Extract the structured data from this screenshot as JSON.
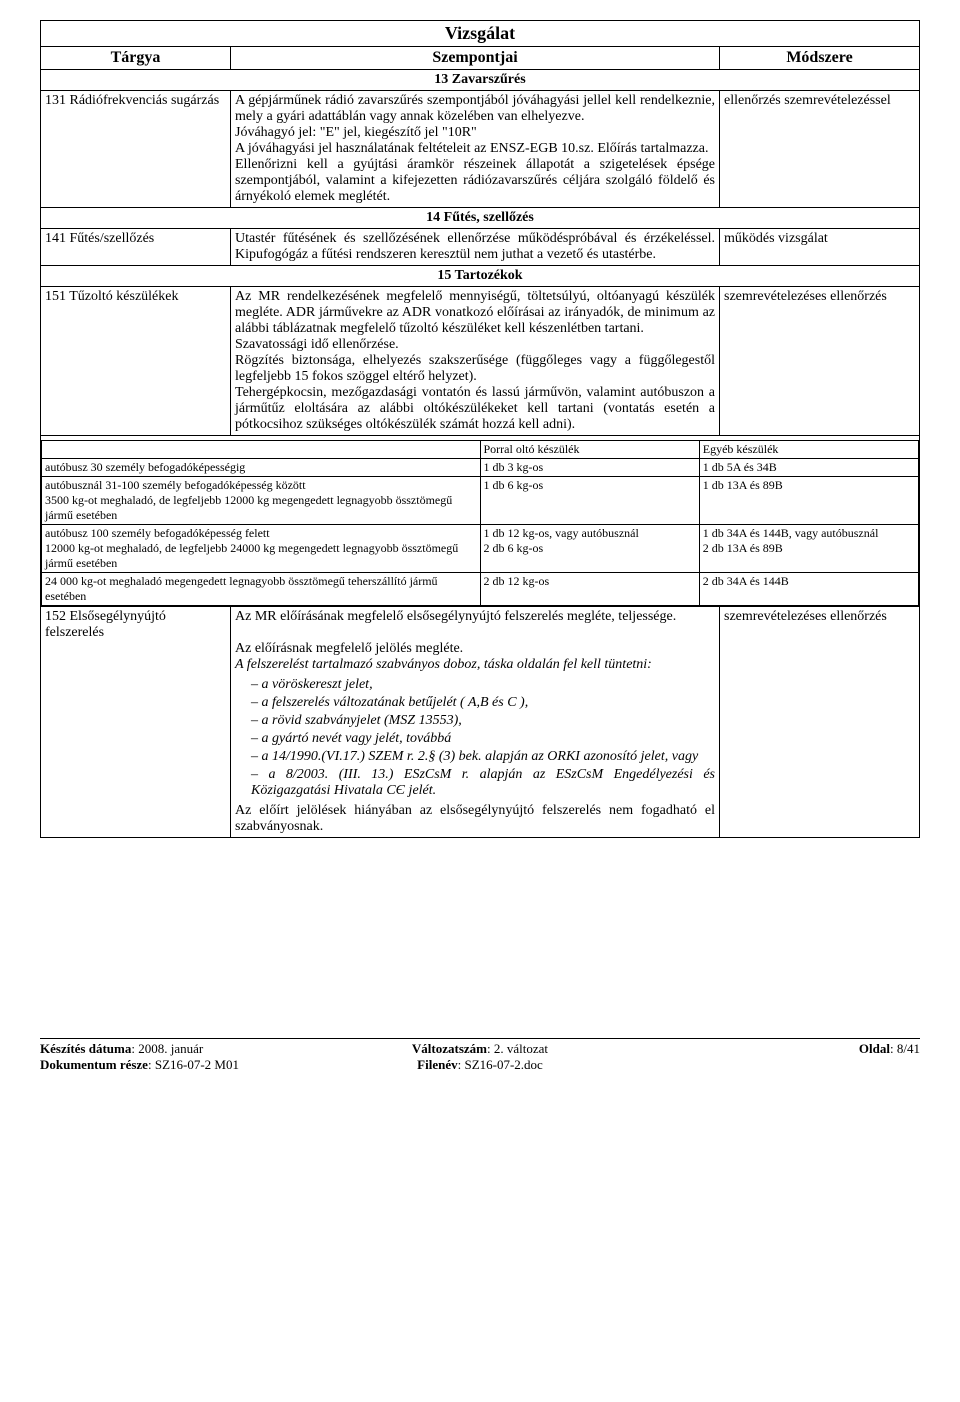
{
  "title": "Vizsgálat",
  "headers": {
    "c1": "Tárgya",
    "c2": "Szempontjai",
    "c3": "Módszere"
  },
  "sec13": {
    "head": "13 Zavarszűrés",
    "left": "131 Rádiófrekvenciás sugárzás",
    "mid": "A gépjárműnek rádió zavarszűrés szempontjából jóváhagyási jellel kell rendelkeznie, mely a gyári adattáblán vagy annak közelében van elhelyezve.\nJóváhagyó jel: \"E\" jel, kiegészítő jel \"10R\"\nA jóváhagyási jel használatának feltételeit az ENSZ-EGB 10.sz. Előírás tartalmazza.\nEllenőrizni kell a gyújtási áramkör részeinek állapotát a szigetelések épsége szempontjából, valamint a kifejezetten rádiózavarszűrés céljára szolgáló földelő és árnyékoló elemek meglétét.",
    "right": "ellenőrzés szemrevételezéssel"
  },
  "sec14": {
    "head": "14 Fűtés, szellőzés",
    "left": "141 Fűtés/szellőzés",
    "mid": "Utastér fűtésének és szellőzésének ellenőrzése működéspróbával és érzékeléssel. Kipufogógáz a fűtési rendszeren keresztül nem juthat a vezető és utastérbe.",
    "right": "működés vizsgálat"
  },
  "sec15": {
    "head": "15 Tartozékok",
    "r151_left": "151 Tűzoltó készülékek",
    "r151_mid": "Az MR rendelkezésének megfelelő mennyiségű, töltetsúlyú, oltóanyagú készülék megléte. ADR járművekre az ADR vonatkozó előírásai az irányadók, de minimum az alábbi táblázatnak megfelelő tűzoltó készüléket kell készenlétben tartani.\nSzavatossági idő ellenőrzése.\nRögzítés biztonsága, elhelyezés szakszerűsége (függőleges vagy a függőlegestől legfeljebb 15 fokos szöggel eltérő helyzet).\nTehergépkocsin, mezőgazdasági vontatón és lassú járművön, valamint autóbuszon a járműtűz eloltására az alábbi oltókészülékeket kell tartani (vontatás esetén a pótkocsihoz szükséges oltókészülék számát hozzá kell adni).",
    "r151_right": "szemrevételezéses ellenőrzés",
    "inner_h1": "",
    "inner_h2": "Porral oltó készülék",
    "inner_h3": "Egyéb készülék",
    "inner_rows": [
      [
        "autóbusz 30 személy befogadóképességig",
        "1 db 3 kg-os",
        "1 db 5A és 34B"
      ],
      [
        "autóbusznál 31-100 személy befogadóképesség között\n3500 kg-ot meghaladó, de legfeljebb 12000 kg megengedett legnagyobb össztömegű jármű esetében",
        "1 db 6 kg-os",
        "1 db 13A és 89B"
      ],
      [
        "autóbusz 100 személy befogadóképesség felett\n12000 kg-ot meghaladó, de legfeljebb 24000 kg megengedett legnagyobb össztömegű jármű esetében",
        "1 db 12 kg-os, vagy autóbusznál\n2 db 6 kg-os",
        "1 db 34A és 144B, vagy autóbusznál\n2 db 13A és 89B"
      ],
      [
        "24 000 kg-ot meghaladó megengedett legnagyobb össztömegű teherszállító jármű esetében",
        "2 db 12 kg-os",
        "2 db 34A és 144B"
      ]
    ],
    "r152_left": "152 Elsősegélynyújtó felszerelés",
    "r152_mid_p1": "Az MR előírásának megfelelő elsősegélynyújtó felszerelés megléte, teljessége.",
    "r152_mid_p2": "Az előírásnak megfelelő jelölés megléte.",
    "r152_mid_p3": "A felszerelést tartalmazó szabványos doboz, táska oldalán fel kell tüntetni:",
    "r152_list": [
      "a vöröskereszt jelet,",
      "a felszerelés változatának betűjelét ( A,B és C ),",
      "a rövid szabványjelet (MSZ 13553),",
      "a gyártó nevét vagy jelét, továbbá",
      " a 14/1990.(VI.17.) SZEM r. 2.§ (3) bek. alapján az ORKI azonosító jelet, vagy",
      " a 8/2003. (III. 13.) ESzCsM r. alapján az ESzCsM Engedélyezési és Közigazgatási Hivatala CЄ jelét."
    ],
    "r152_mid_p4": "Az előírt jelölések hiányában az elsősegélynyújtó felszerelés nem fogadható el szabványosnak.",
    "r152_right": "szemrevételezéses ellenőrzés"
  },
  "footer": {
    "l1": "Készítés dátuma: 2008. január",
    "l2": "Dokumentum része: SZ16-07-2 M01",
    "c1": "Változatszám: 2. változat",
    "c2": "Filenév: SZ16-07-2.doc",
    "r1": "Oldal: 8/41"
  }
}
